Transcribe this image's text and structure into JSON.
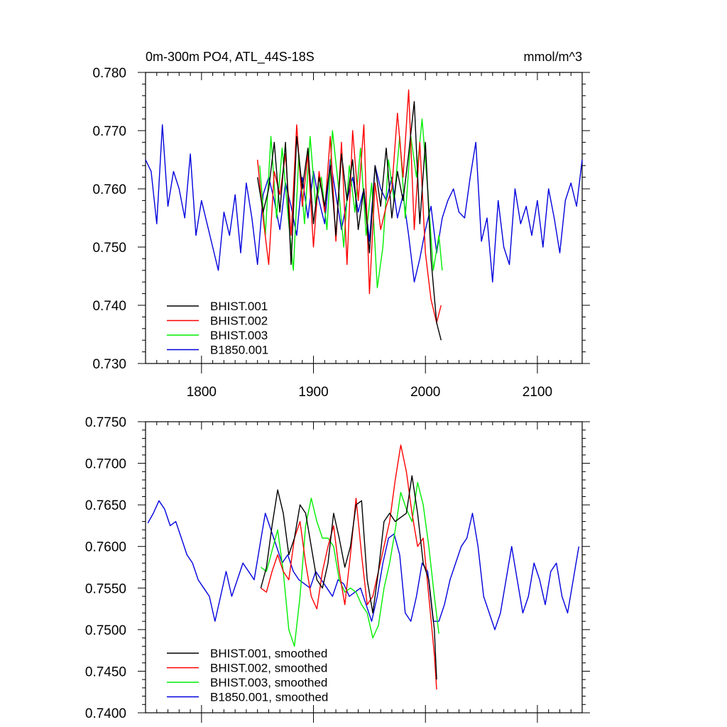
{
  "chart_data": [
    {
      "type": "line",
      "title_left": "0m-300m PO4, ATL_44S-18S",
      "title_right": "mmol/m^3",
      "xlim": [
        1750,
        2140
      ],
      "ylim": [
        0.73,
        0.78
      ],
      "x_ticks": [
        1800,
        1900,
        2000,
        2100
      ],
      "x_tick_labels": [
        "1800",
        "1900",
        "2000",
        "2100"
      ],
      "y_ticks": [
        0.73,
        0.74,
        0.75,
        0.76,
        0.77,
        0.78
      ],
      "y_tick_labels": [
        "0.730",
        "0.740",
        "0.750",
        "0.760",
        "0.770",
        "0.780"
      ],
      "legend": [
        "BHIST.001",
        "BHIST.002",
        "BHIST.003",
        "B1850.001"
      ],
      "series": [
        {
          "name": "BHIST.001",
          "color": "#000000",
          "x": [
            1850,
            1855,
            1860,
            1865,
            1870,
            1875,
            1880,
            1885,
            1890,
            1895,
            1900,
            1905,
            1910,
            1915,
            1920,
            1925,
            1930,
            1935,
            1940,
            1945,
            1950,
            1955,
            1960,
            1965,
            1970,
            1975,
            1980,
            1985,
            1990,
            1995,
            2000,
            2005,
            2010,
            2014
          ],
          "y": [
            0.762,
            0.756,
            0.76,
            0.768,
            0.756,
            0.768,
            0.747,
            0.769,
            0.76,
            0.767,
            0.754,
            0.762,
            0.757,
            0.764,
            0.752,
            0.766,
            0.758,
            0.765,
            0.753,
            0.76,
            0.749,
            0.764,
            0.757,
            0.767,
            0.755,
            0.763,
            0.758,
            0.766,
            0.775,
            0.754,
            0.768,
            0.748,
            0.737,
            0.734
          ]
        },
        {
          "name": "BHIST.002",
          "color": "#ff0000",
          "x": [
            1850,
            1855,
            1860,
            1865,
            1870,
            1875,
            1880,
            1885,
            1890,
            1895,
            1900,
            1905,
            1910,
            1915,
            1920,
            1925,
            1930,
            1935,
            1940,
            1945,
            1950,
            1955,
            1960,
            1965,
            1970,
            1975,
            1980,
            1985,
            1990,
            1995,
            2000,
            2005,
            2010,
            2014
          ],
          "y": [
            0.765,
            0.755,
            0.747,
            0.763,
            0.759,
            0.766,
            0.752,
            0.771,
            0.757,
            0.766,
            0.75,
            0.763,
            0.756,
            0.769,
            0.751,
            0.768,
            0.747,
            0.77,
            0.758,
            0.771,
            0.742,
            0.761,
            0.753,
            0.757,
            0.76,
            0.773,
            0.762,
            0.777,
            0.753,
            0.768,
            0.749,
            0.741,
            0.737,
            0.74
          ]
        },
        {
          "name": "BHIST.003",
          "color": "#00ee00",
          "x": [
            1852,
            1857,
            1862,
            1867,
            1872,
            1877,
            1882,
            1887,
            1892,
            1897,
            1902,
            1907,
            1912,
            1917,
            1922,
            1927,
            1932,
            1937,
            1942,
            1947,
            1952,
            1957,
            1962,
            1967,
            1972,
            1977,
            1982,
            1987,
            1992,
            1997,
            2002,
            2007,
            2012,
            2015
          ],
          "y": [
            0.764,
            0.752,
            0.769,
            0.755,
            0.767,
            0.756,
            0.746,
            0.766,
            0.754,
            0.769,
            0.757,
            0.762,
            0.753,
            0.77,
            0.761,
            0.75,
            0.764,
            0.756,
            0.767,
            0.752,
            0.761,
            0.743,
            0.75,
            0.765,
            0.758,
            0.769,
            0.755,
            0.769,
            0.762,
            0.772,
            0.76,
            0.746,
            0.752,
            0.746
          ]
        },
        {
          "name": "B1850.001",
          "color": "#0000dd",
          "x": [
            1750,
            1755,
            1760,
            1765,
            1770,
            1775,
            1780,
            1785,
            1790,
            1795,
            1800,
            1805,
            1810,
            1815,
            1820,
            1825,
            1830,
            1835,
            1840,
            1845,
            1850,
            1855,
            1860,
            1865,
            1870,
            1875,
            1880,
            1885,
            1890,
            1895,
            1900,
            1905,
            1910,
            1915,
            1920,
            1925,
            1930,
            1935,
            1940,
            1945,
            1950,
            1955,
            1960,
            1965,
            1970,
            1975,
            1980,
            1985,
            1990,
            1995,
            2000,
            2005,
            2010,
            2015,
            2020,
            2025,
            2030,
            2035,
            2040,
            2045,
            2050,
            2055,
            2060,
            2065,
            2070,
            2075,
            2080,
            2085,
            2090,
            2095,
            2100,
            2105,
            2110,
            2115,
            2120,
            2125,
            2130,
            2135,
            2140
          ],
          "y": [
            0.765,
            0.763,
            0.754,
            0.771,
            0.757,
            0.763,
            0.76,
            0.755,
            0.766,
            0.752,
            0.758,
            0.754,
            0.75,
            0.746,
            0.756,
            0.752,
            0.759,
            0.749,
            0.761,
            0.755,
            0.747,
            0.759,
            0.762,
            0.758,
            0.753,
            0.761,
            0.757,
            0.752,
            0.762,
            0.755,
            0.763,
            0.758,
            0.754,
            0.765,
            0.759,
            0.753,
            0.758,
            0.762,
            0.756,
            0.76,
            0.751,
            0.764,
            0.76,
            0.758,
            0.762,
            0.755,
            0.759,
            0.752,
            0.744,
            0.748,
            0.753,
            0.757,
            0.749,
            0.755,
            0.758,
            0.76,
            0.756,
            0.755,
            0.762,
            0.768,
            0.751,
            0.755,
            0.744,
            0.758,
            0.75,
            0.747,
            0.76,
            0.754,
            0.757,
            0.752,
            0.758,
            0.75,
            0.76,
            0.755,
            0.749,
            0.758,
            0.761,
            0.757,
            0.765
          ]
        }
      ]
    },
    {
      "type": "line",
      "xlim": [
        1750,
        2140
      ],
      "ylim": [
        0.74,
        0.775
      ],
      "x_ticks": [
        1800,
        1900,
        2000,
        2100
      ],
      "y_ticks": [
        0.74,
        0.745,
        0.75,
        0.755,
        0.76,
        0.765,
        0.77,
        0.775
      ],
      "y_tick_labels": [
        "0.7400",
        "0.7450",
        "0.7500",
        "0.7550",
        "0.7600",
        "0.7650",
        "0.7700",
        "0.7750"
      ],
      "legend": [
        "BHIST.001, smoothed",
        "BHIST.002, smoothed",
        "BHIST.003, smoothed",
        "B1850.001, smoothed"
      ],
      "series": [
        {
          "name": "BHIST.001, smoothed",
          "color": "#000000",
          "x": [
            1853,
            1858,
            1863,
            1868,
            1873,
            1878,
            1883,
            1888,
            1893,
            1898,
            1903,
            1908,
            1913,
            1918,
            1923,
            1928,
            1933,
            1938,
            1943,
            1948,
            1953,
            1958,
            1963,
            1968,
            1973,
            1978,
            1983,
            1988,
            1993,
            1998,
            2003,
            2008,
            2010
          ],
          "y": [
            0.755,
            0.7575,
            0.7625,
            0.7668,
            0.764,
            0.759,
            0.761,
            0.765,
            0.764,
            0.76,
            0.756,
            0.755,
            0.758,
            0.764,
            0.761,
            0.7575,
            0.76,
            0.765,
            0.7655,
            0.756,
            0.752,
            0.757,
            0.763,
            0.764,
            0.763,
            0.7635,
            0.764,
            0.7685,
            0.764,
            0.758,
            0.756,
            0.75,
            0.744
          ]
        },
        {
          "name": "BHIST.002, smoothed",
          "color": "#ff0000",
          "x": [
            1853,
            1858,
            1863,
            1868,
            1873,
            1878,
            1883,
            1888,
            1893,
            1898,
            1903,
            1908,
            1913,
            1918,
            1923,
            1928,
            1933,
            1938,
            1943,
            1948,
            1953,
            1958,
            1963,
            1968,
            1973,
            1978,
            1983,
            1988,
            1993,
            1998,
            2003,
            2008,
            2010
          ],
          "y": [
            0.755,
            0.7545,
            0.757,
            0.759,
            0.757,
            0.756,
            0.761,
            0.763,
            0.758,
            0.754,
            0.7525,
            0.757,
            0.76,
            0.7625,
            0.757,
            0.753,
            0.759,
            0.7658,
            0.759,
            0.753,
            0.754,
            0.757,
            0.76,
            0.763,
            0.768,
            0.7722,
            0.769,
            0.764,
            0.76,
            0.761,
            0.754,
            0.747,
            0.7428
          ]
        },
        {
          "name": "BHIST.003, smoothed",
          "color": "#00ee00",
          "x": [
            1853,
            1858,
            1863,
            1868,
            1873,
            1878,
            1883,
            1888,
            1893,
            1898,
            1903,
            1908,
            1913,
            1918,
            1923,
            1928,
            1933,
            1938,
            1943,
            1948,
            1953,
            1958,
            1963,
            1968,
            1973,
            1978,
            1983,
            1988,
            1993,
            1998,
            2003,
            2008,
            2012
          ],
          "y": [
            0.7575,
            0.757,
            0.7595,
            0.762,
            0.757,
            0.75,
            0.748,
            0.754,
            0.7625,
            0.7658,
            0.763,
            0.761,
            0.761,
            0.76,
            0.756,
            0.7545,
            0.755,
            0.7545,
            0.753,
            0.752,
            0.749,
            0.7505,
            0.755,
            0.758,
            0.762,
            0.7665,
            0.7645,
            0.763,
            0.7677,
            0.765,
            0.76,
            0.754,
            0.7495
          ]
        },
        {
          "name": "B1850.001, smoothed",
          "color": "#0000dd",
          "x": [
            1752,
            1757,
            1762,
            1767,
            1772,
            1777,
            1782,
            1787,
            1792,
            1797,
            1802,
            1807,
            1812,
            1817,
            1822,
            1827,
            1832,
            1837,
            1842,
            1847,
            1852,
            1857,
            1862,
            1867,
            1872,
            1877,
            1882,
            1887,
            1892,
            1897,
            1902,
            1907,
            1912,
            1917,
            1922,
            1927,
            1932,
            1937,
            1942,
            1947,
            1952,
            1957,
            1962,
            1967,
            1972,
            1977,
            1982,
            1987,
            1992,
            1997,
            2002,
            2007,
            2012,
            2017,
            2022,
            2027,
            2032,
            2037,
            2042,
            2047,
            2052,
            2057,
            2062,
            2067,
            2072,
            2077,
            2082,
            2087,
            2092,
            2097,
            2102,
            2107,
            2112,
            2117,
            2122,
            2127,
            2132,
            2137
          ],
          "y": [
            0.7628,
            0.764,
            0.7655,
            0.7645,
            0.7625,
            0.763,
            0.761,
            0.759,
            0.758,
            0.756,
            0.755,
            0.754,
            0.751,
            0.754,
            0.757,
            0.754,
            0.756,
            0.758,
            0.757,
            0.756,
            0.76,
            0.764,
            0.762,
            0.76,
            0.758,
            0.759,
            0.757,
            0.756,
            0.7555,
            0.755,
            0.757,
            0.756,
            0.755,
            0.754,
            0.756,
            0.7555,
            0.754,
            0.7545,
            0.755,
            0.753,
            0.751,
            0.754,
            0.758,
            0.761,
            0.7615,
            0.759,
            0.752,
            0.751,
            0.754,
            0.758,
            0.757,
            0.751,
            0.751,
            0.753,
            0.756,
            0.758,
            0.76,
            0.761,
            0.764,
            0.76,
            0.754,
            0.752,
            0.75,
            0.752,
            0.756,
            0.76,
            0.756,
            0.752,
            0.754,
            0.758,
            0.756,
            0.753,
            0.757,
            0.758,
            0.754,
            0.752,
            0.756,
            0.76
          ]
        }
      ]
    }
  ]
}
